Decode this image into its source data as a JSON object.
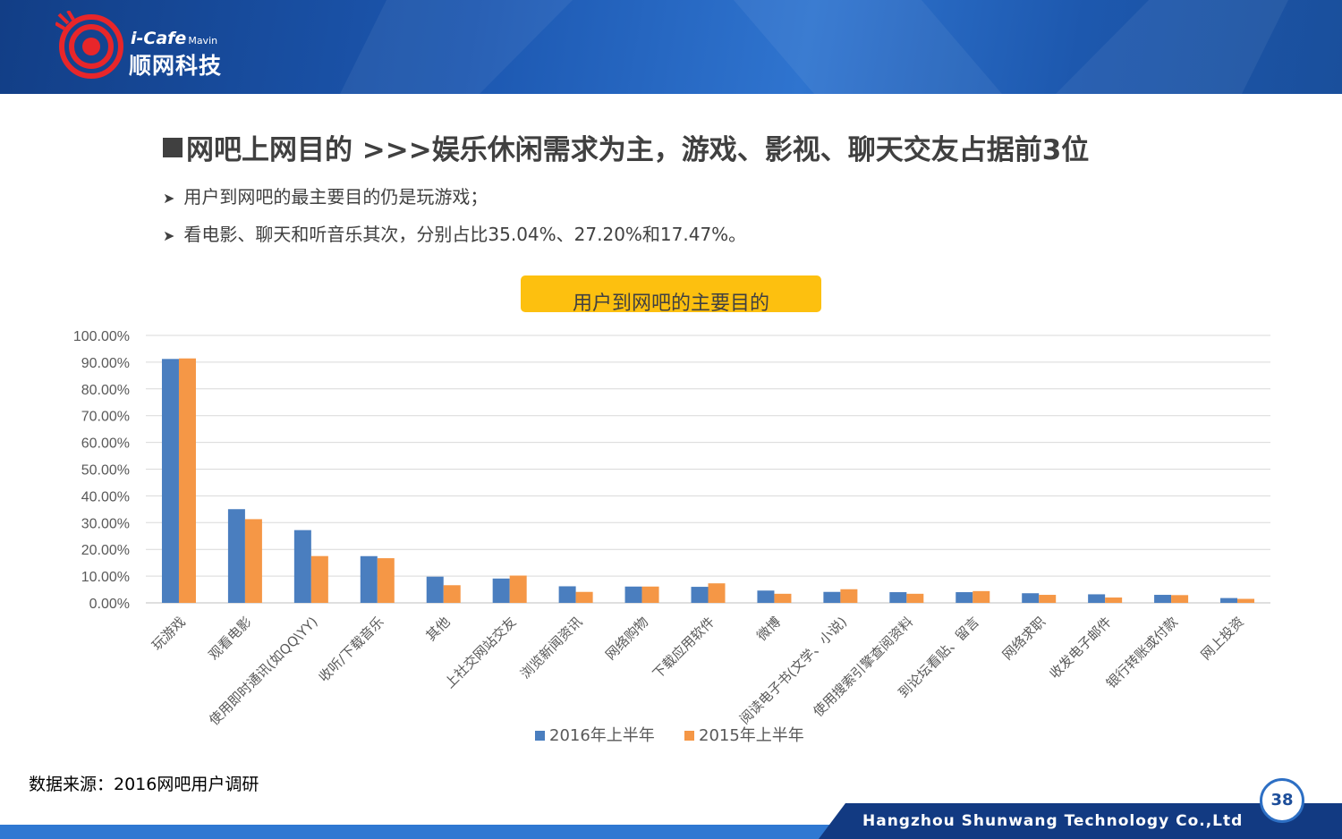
{
  "logo": {
    "brand": "i-Cafe",
    "brand_sub": "Mavin",
    "cn_name": "顺网科技"
  },
  "title": "网吧上网目的  >>>娱乐休闲需求为主，游戏、影视、聊天交友占据前3位",
  "bullets": [
    "用户到网吧的最主要目的仍是玩游戏；",
    "看电影、聊天和听音乐其次，分别占比35.04%、27.20%和17.47%。"
  ],
  "chart_title": "用户到网吧的主要目的",
  "source": "数据来源：2016网吧用户调研",
  "footer": {
    "company": "Hangzhou Shunwang Technology Co.,Ltd",
    "page": "38"
  },
  "colors": {
    "series_2016": "#4a7ebf",
    "series_2015": "#f59746",
    "title_box": "#fdc00f",
    "header_blue": "#1c57b0"
  },
  "chart_data": {
    "type": "bar",
    "title": "用户到网吧的主要目的",
    "categories": [
      "玩游戏",
      "观看电影",
      "使用即时通讯(如QQ\\YY)",
      "收听/下载音乐",
      "其他",
      "上社交网站交友",
      "浏览新闻资讯",
      "网络购物",
      "下载应用软件",
      "微博",
      "阅读电子书(文学、小说)",
      "使用搜索引擎查阅资料",
      "到论坛看贴、留言",
      "网络求职",
      "收发电子邮件",
      "银行转账或付款",
      "网上投资"
    ],
    "series": [
      {
        "name": "2016年上半年",
        "values": [
          91.2,
          35.04,
          27.2,
          17.47,
          9.8,
          9.1,
          6.2,
          6.1,
          6.0,
          4.6,
          4.1,
          4.0,
          4.0,
          3.6,
          3.2,
          3.0,
          1.8
        ]
      },
      {
        "name": "2015年上半年",
        "values": [
          91.4,
          31.3,
          17.5,
          16.7,
          6.6,
          10.2,
          4.1,
          6.1,
          7.3,
          3.4,
          5.1,
          3.4,
          4.4,
          3.0,
          2.0,
          2.9,
          1.5
        ]
      }
    ],
    "ylim": [
      0,
      100
    ],
    "yticks": [
      "0.00%",
      "10.00%",
      "20.00%",
      "30.00%",
      "40.00%",
      "50.00%",
      "60.00%",
      "70.00%",
      "80.00%",
      "90.00%",
      "100.00%"
    ],
    "grid": true,
    "legend": "bottom-center"
  }
}
